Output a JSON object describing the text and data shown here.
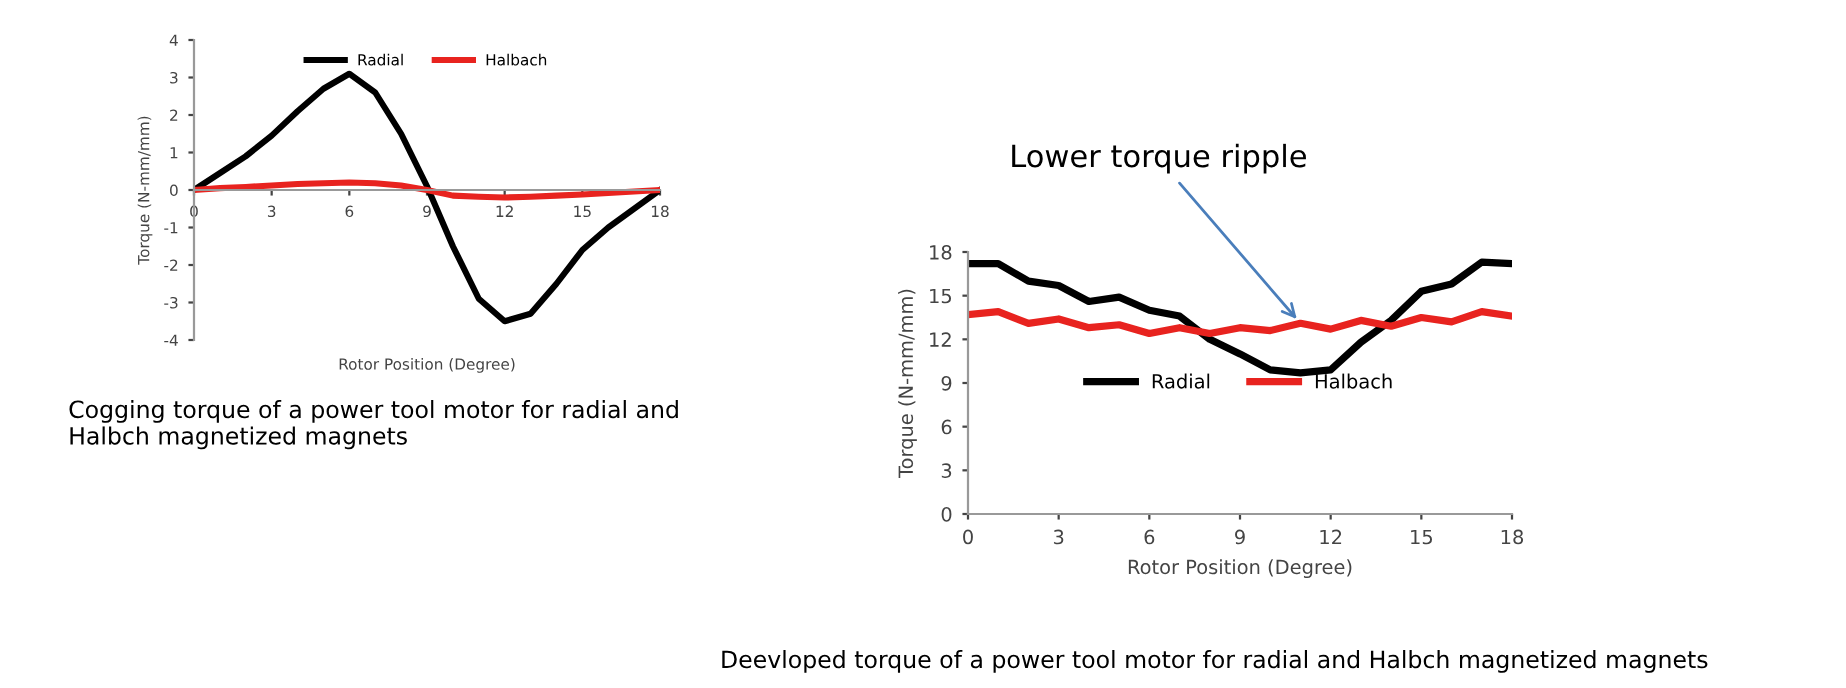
{
  "chart_data": [
    {
      "type": "line",
      "xlabel": "Rotor Position (Degree)",
      "ylabel": "Torque (N-mm/mm)",
      "x": [
        0,
        1,
        2,
        3,
        4,
        5,
        6,
        7,
        8,
        9,
        10,
        11,
        12,
        13,
        14,
        15,
        16,
        17,
        18
      ],
      "series": [
        {
          "name": "Radial",
          "color": "#000000",
          "values": [
            0,
            0.45,
            0.9,
            1.45,
            2.1,
            2.7,
            3.1,
            2.6,
            1.5,
            0.1,
            -1.5,
            -2.9,
            -3.5,
            -3.3,
            -2.5,
            -1.6,
            -1.0,
            -0.5,
            0
          ]
        },
        {
          "name": "Halbach",
          "color": "#e8231f",
          "values": [
            0,
            0.05,
            0.08,
            0.12,
            0.16,
            0.18,
            0.2,
            0.18,
            0.12,
            0,
            -0.15,
            -0.18,
            -0.2,
            -0.18,
            -0.15,
            -0.12,
            -0.08,
            -0.04,
            0
          ]
        }
      ],
      "xlim": [
        0,
        18
      ],
      "xticks": [
        0,
        3,
        6,
        9,
        12,
        15,
        18
      ],
      "ylim": [
        -4,
        4
      ],
      "yticks": [
        -4,
        -3,
        -2,
        -1,
        0,
        1,
        2,
        3,
        4
      ],
      "grid": false,
      "legend": "top",
      "marker": "none",
      "line_style": "solid",
      "annotations": [
        "Cogging torque of a power tool motor for radial and Halbch magnetized magnets"
      ]
    },
    {
      "type": "line",
      "xlabel": "Rotor Position (Degree)",
      "ylabel": "Torque (N-mm/mm)",
      "x": [
        0,
        1,
        2,
        3,
        4,
        5,
        6,
        7,
        8,
        9,
        10,
        11,
        12,
        13,
        14,
        15,
        16,
        17,
        18
      ],
      "series": [
        {
          "name": "Radial",
          "color": "#000000",
          "values": [
            17.2,
            17.2,
            16.0,
            15.7,
            14.6,
            14.9,
            14.0,
            13.6,
            12.0,
            11.0,
            9.9,
            9.7,
            9.9,
            11.8,
            13.3,
            15.3,
            15.8,
            17.3,
            17.2
          ]
        },
        {
          "name": "Halbach",
          "color": "#e8231f",
          "values": [
            13.7,
            13.9,
            13.1,
            13.4,
            12.8,
            13.0,
            12.4,
            12.8,
            12.4,
            12.8,
            12.6,
            13.1,
            12.7,
            13.3,
            12.9,
            13.5,
            13.2,
            13.9,
            13.6
          ]
        }
      ],
      "xlim": [
        0,
        18
      ],
      "xticks": [
        0,
        3,
        6,
        9,
        12,
        15,
        18
      ],
      "ylim": [
        0,
        18
      ],
      "yticks": [
        0,
        3,
        6,
        9,
        12,
        15,
        18
      ],
      "grid": false,
      "legend": "center",
      "marker": "none",
      "line_style": "solid",
      "annotations": [
        {
          "text": "Lower torque ripple",
          "x": 11,
          "y": 13.1
        },
        "Deevloped torque of a power tool motor for radial and Halbch magnetized magnets"
      ]
    }
  ]
}
